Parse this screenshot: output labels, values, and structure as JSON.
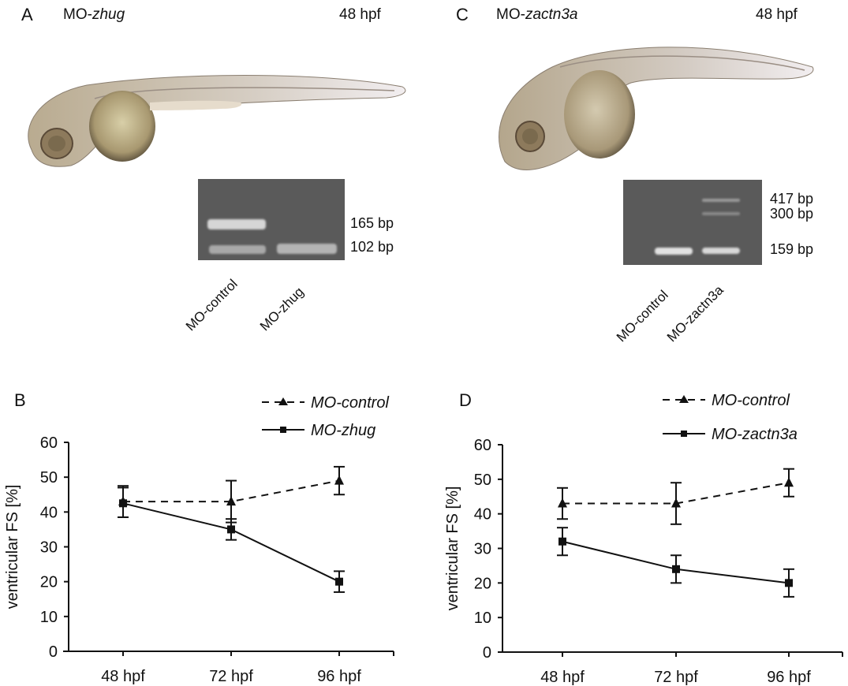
{
  "panels": {
    "A": {
      "letter": "A",
      "title_prefix": "MO-",
      "title_gene": "zhug",
      "stage": "48 hpf",
      "gel": {
        "bands_bp": [
          "165 bp",
          "102 bp"
        ],
        "lanes": [
          "MO-control",
          "MO-zhug"
        ]
      }
    },
    "C": {
      "letter": "C",
      "title_prefix": "MO-",
      "title_gene": "zactn3a",
      "stage": "48 hpf",
      "gel": {
        "bands_bp": [
          "417 bp",
          "300 bp",
          "159 bp"
        ],
        "lanes": [
          "MO-control",
          "MO-zactn3a"
        ]
      }
    },
    "B": {
      "letter": "B"
    },
    "D": {
      "letter": "D"
    }
  },
  "colors": {
    "ink": "#111111",
    "gel": "#5a5a5a",
    "band": "#e8e8e8"
  },
  "chart_data": [
    {
      "panel": "B",
      "type": "line",
      "title": "",
      "xlabel": "",
      "ylabel": "ventricular FS [%]",
      "categories": [
        "48 hpf",
        "72 hpf",
        "96 hpf"
      ],
      "ylim": [
        0,
        60
      ],
      "yticks": [
        "0",
        "10",
        "20",
        "30",
        "40",
        "50",
        "60"
      ],
      "grid": false,
      "legend_position": "top-right",
      "series": [
        {
          "name": "MO-control",
          "style": "dashed",
          "marker": "triangle",
          "values": [
            43,
            43,
            49
          ],
          "err_low": [
            38.5,
            37,
            45
          ],
          "err_high": [
            47.5,
            49,
            53
          ]
        },
        {
          "name": "MO-zhug",
          "style": "solid",
          "marker": "square",
          "values": [
            42.5,
            35,
            20
          ],
          "err_low": [
            38.5,
            32,
            17
          ],
          "err_high": [
            47,
            38,
            23
          ]
        }
      ]
    },
    {
      "panel": "D",
      "type": "line",
      "title": "",
      "xlabel": "",
      "ylabel": "ventricular FS [%]",
      "categories": [
        "48 hpf",
        "72 hpf",
        "96 hpf"
      ],
      "ylim": [
        0,
        60
      ],
      "yticks": [
        "0",
        "10",
        "20",
        "30",
        "40",
        "50",
        "60"
      ],
      "grid": false,
      "legend_position": "top-right",
      "series": [
        {
          "name": "MO-control",
          "style": "dashed",
          "marker": "triangle",
          "values": [
            43,
            43,
            49
          ],
          "err_low": [
            38.5,
            37,
            45
          ],
          "err_high": [
            47.5,
            49,
            53
          ]
        },
        {
          "name": "MO-zactn3a",
          "style": "solid",
          "marker": "square",
          "values": [
            32,
            24,
            20
          ],
          "err_low": [
            28,
            20,
            16
          ],
          "err_high": [
            36,
            28,
            24
          ]
        }
      ]
    }
  ]
}
